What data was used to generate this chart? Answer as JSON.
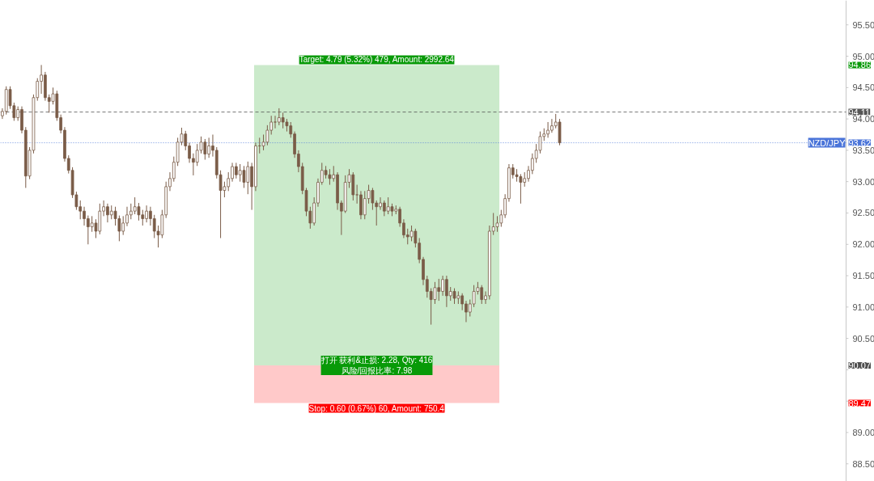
{
  "chart_data": {
    "type": "candlestick",
    "categories": [
      null,
      null,
      null,
      null,
      null,
      null,
      null,
      null,
      null,
      null,
      null,
      null,
      null,
      null,
      null,
      null,
      null,
      null,
      null,
      null,
      null,
      null,
      null,
      null,
      null,
      null,
      null,
      null,
      null,
      null,
      null,
      null,
      null,
      null,
      null,
      null,
      null,
      null,
      null,
      null,
      null,
      null,
      null,
      null,
      null,
      null,
      null,
      null,
      null,
      null,
      null,
      null,
      null,
      null,
      null,
      null,
      null,
      null,
      null,
      null,
      null,
      null,
      null,
      null,
      null,
      null,
      null,
      null,
      null,
      null,
      null,
      null,
      null,
      null,
      null,
      null,
      null,
      null,
      null,
      null,
      null,
      null,
      null,
      null,
      null,
      null,
      null,
      null,
      null,
      null,
      null,
      null,
      null,
      null,
      null,
      null,
      null,
      null,
      null,
      null,
      null,
      null,
      null,
      null,
      null,
      null,
      null,
      null,
      null,
      null,
      null,
      null,
      null,
      null,
      null,
      null,
      null,
      null,
      null,
      null,
      null,
      null,
      null,
      null,
      null,
      null,
      null,
      null,
      null,
      null,
      null,
      null,
      null,
      null,
      null,
      null,
      null,
      null,
      null,
      null,
      null,
      null,
      null,
      null,
      null,
      null,
      null,
      null,
      null,
      null,
      null,
      null,
      null,
      null,
      null,
      null,
      null,
      null,
      null,
      null,
      null,
      null,
      null,
      null,
      null,
      null,
      null,
      null,
      null,
      null,
      null,
      null,
      null,
      null,
      null,
      null,
      null,
      null,
      null,
      null,
      null,
      null,
      null,
      null,
      null,
      null,
      null,
      null,
      null,
      null,
      null,
      null,
      null,
      null,
      null,
      null,
      null,
      null,
      null,
      null,
      null,
      null,
      null,
      null,
      null,
      null,
      null,
      null,
      null,
      null,
      null,
      null,
      null,
      null,
      null,
      null,
      null
    ],
    "color": "#7a5c48",
    "ohlc": [
      [
        94.05,
        94.17,
        94.0,
        94.12
      ],
      [
        94.12,
        94.52,
        94.07,
        94.47
      ],
      [
        94.47,
        94.52,
        94.16,
        94.21
      ],
      [
        94.21,
        94.26,
        93.97,
        94.02
      ],
      [
        94.02,
        94.2,
        93.97,
        94.15
      ],
      [
        94.15,
        94.2,
        93.77,
        93.82
      ],
      [
        93.82,
        93.87,
        92.9,
        93.09
      ],
      [
        93.09,
        93.55,
        93.04,
        93.5
      ],
      [
        93.5,
        94.39,
        93.45,
        94.34
      ],
      [
        94.34,
        94.65,
        94.29,
        94.6
      ],
      [
        94.6,
        94.86,
        94.4,
        94.7
      ],
      [
        94.7,
        94.75,
        94.29,
        94.34
      ],
      [
        94.34,
        94.39,
        94.1,
        94.28
      ],
      [
        94.28,
        94.5,
        94.23,
        94.4
      ],
      [
        94.4,
        94.45,
        93.97,
        94.02
      ],
      [
        94.02,
        94.07,
        93.77,
        93.82
      ],
      [
        93.82,
        93.87,
        93.32,
        93.37
      ],
      [
        93.37,
        93.42,
        93.13,
        93.18
      ],
      [
        93.18,
        93.23,
        92.74,
        92.79
      ],
      [
        92.79,
        92.84,
        92.55,
        92.6
      ],
      [
        92.6,
        92.7,
        92.4,
        92.53
      ],
      [
        92.53,
        92.6,
        92.3,
        92.41
      ],
      [
        92.41,
        92.46,
        92.0,
        92.28
      ],
      [
        92.28,
        92.45,
        92.2,
        92.34
      ],
      [
        92.34,
        92.4,
        92.1,
        92.21
      ],
      [
        92.21,
        92.65,
        92.16,
        92.53
      ],
      [
        92.53,
        92.7,
        92.45,
        92.6
      ],
      [
        92.6,
        92.65,
        92.35,
        92.47
      ],
      [
        92.47,
        92.62,
        92.4,
        92.53
      ],
      [
        92.53,
        92.6,
        92.3,
        92.41
      ],
      [
        92.41,
        92.46,
        92.05,
        92.21
      ],
      [
        92.21,
        92.45,
        92.15,
        92.34
      ],
      [
        92.34,
        92.6,
        92.29,
        92.47
      ],
      [
        92.47,
        92.65,
        92.4,
        92.53
      ],
      [
        92.53,
        92.75,
        92.48,
        92.6
      ],
      [
        92.6,
        92.66,
        92.38,
        92.47
      ],
      [
        92.47,
        92.55,
        92.3,
        92.41
      ],
      [
        92.41,
        92.62,
        92.35,
        92.53
      ],
      [
        92.53,
        92.6,
        92.3,
        92.41
      ],
      [
        92.41,
        92.47,
        92.1,
        92.21
      ],
      [
        92.21,
        92.3,
        91.95,
        92.15
      ],
      [
        92.15,
        92.55,
        92.1,
        92.47
      ],
      [
        92.47,
        93.0,
        92.42,
        92.92
      ],
      [
        92.92,
        93.15,
        92.85,
        93.05
      ],
      [
        93.05,
        93.4,
        93.0,
        93.31
      ],
      [
        93.31,
        93.7,
        93.25,
        93.63
      ],
      [
        93.63,
        93.86,
        93.58,
        93.76
      ],
      [
        93.76,
        93.81,
        93.5,
        93.57
      ],
      [
        93.57,
        93.62,
        93.3,
        93.37
      ],
      [
        93.37,
        93.45,
        93.1,
        93.31
      ],
      [
        93.31,
        93.6,
        93.25,
        93.5
      ],
      [
        93.5,
        93.72,
        93.45,
        93.63
      ],
      [
        93.63,
        93.68,
        93.35,
        93.44
      ],
      [
        93.44,
        93.7,
        93.38,
        93.57
      ],
      [
        93.57,
        93.75,
        93.4,
        93.5
      ],
      [
        93.5,
        93.55,
        93.05,
        93.11
      ],
      [
        93.11,
        93.18,
        92.1,
        92.86
      ],
      [
        92.86,
        93.0,
        92.75,
        92.92
      ],
      [
        92.92,
        93.15,
        92.85,
        93.05
      ],
      [
        93.05,
        93.3,
        93.0,
        93.24
      ],
      [
        93.24,
        93.3,
        93.05,
        93.11
      ],
      [
        93.11,
        93.28,
        93.0,
        93.18
      ],
      [
        93.18,
        93.25,
        92.9,
        92.99
      ],
      [
        92.99,
        93.32,
        92.8,
        93.24
      ],
      [
        93.24,
        93.3,
        92.55,
        92.92
      ],
      [
        92.92,
        93.62,
        92.85,
        93.57
      ],
      [
        93.57,
        93.7,
        93.45,
        93.57
      ],
      [
        93.57,
        93.75,
        93.5,
        93.63
      ],
      [
        93.63,
        93.9,
        93.58,
        93.82
      ],
      [
        93.82,
        94.05,
        93.75,
        93.95
      ],
      [
        93.95,
        94.05,
        93.85,
        93.95
      ],
      [
        93.95,
        94.17,
        93.9,
        94.02
      ],
      [
        94.02,
        94.1,
        93.85,
        93.95
      ],
      [
        93.95,
        94.0,
        93.8,
        93.89
      ],
      [
        93.89,
        93.95,
        93.7,
        93.76
      ],
      [
        93.76,
        93.8,
        93.38,
        93.44
      ],
      [
        93.44,
        93.5,
        93.15,
        93.24
      ],
      [
        93.24,
        93.3,
        92.8,
        92.86
      ],
      [
        92.86,
        92.9,
        92.45,
        92.53
      ],
      [
        92.53,
        92.6,
        92.25,
        92.34
      ],
      [
        92.34,
        92.75,
        92.3,
        92.66
      ],
      [
        92.66,
        93.05,
        92.6,
        92.99
      ],
      [
        92.99,
        93.3,
        92.95,
        93.18
      ],
      [
        93.18,
        93.25,
        93.05,
        93.11
      ],
      [
        93.11,
        93.2,
        92.95,
        93.05
      ],
      [
        93.05,
        93.25,
        93.0,
        93.11
      ],
      [
        93.11,
        93.15,
        92.55,
        92.66
      ],
      [
        92.66,
        92.7,
        92.15,
        92.53
      ],
      [
        92.53,
        93.1,
        92.5,
        92.99
      ],
      [
        92.99,
        93.2,
        92.9,
        93.11
      ],
      [
        93.11,
        93.15,
        92.7,
        92.79
      ],
      [
        92.79,
        92.95,
        92.65,
        92.79
      ],
      [
        92.79,
        92.85,
        92.4,
        92.47
      ],
      [
        92.47,
        92.85,
        92.4,
        92.73
      ],
      [
        92.73,
        92.95,
        92.65,
        92.86
      ],
      [
        92.86,
        92.9,
        92.55,
        92.66
      ],
      [
        92.66,
        92.7,
        92.3,
        92.6
      ],
      [
        92.6,
        92.75,
        92.55,
        92.66
      ],
      [
        92.66,
        92.7,
        92.45,
        92.53
      ],
      [
        92.53,
        92.75,
        92.48,
        92.6
      ],
      [
        92.6,
        92.65,
        92.45,
        92.53
      ],
      [
        92.53,
        92.62,
        92.48,
        92.56
      ],
      [
        92.56,
        92.6,
        92.28,
        92.34
      ],
      [
        92.34,
        92.4,
        92.1,
        92.15
      ],
      [
        92.15,
        92.25,
        92.0,
        92.12
      ],
      [
        92.12,
        92.3,
        92.05,
        92.21
      ],
      [
        92.21,
        92.25,
        91.95,
        92.02
      ],
      [
        92.02,
        92.1,
        91.7,
        91.76
      ],
      [
        91.76,
        91.8,
        91.35,
        91.44
      ],
      [
        91.44,
        91.5,
        91.15,
        91.25
      ],
      [
        91.25,
        91.3,
        90.72,
        91.12
      ],
      [
        91.12,
        91.4,
        91.05,
        91.31
      ],
      [
        91.31,
        91.45,
        91.1,
        91.25
      ],
      [
        91.25,
        91.5,
        91.18,
        91.44
      ],
      [
        91.44,
        91.5,
        91.0,
        91.18
      ],
      [
        91.18,
        91.32,
        91.1,
        91.25
      ],
      [
        91.25,
        91.3,
        91.05,
        91.14
      ],
      [
        91.14,
        91.25,
        91.05,
        91.18
      ],
      [
        91.18,
        91.22,
        90.95,
        91.05
      ],
      [
        91.05,
        91.1,
        90.76,
        90.92
      ],
      [
        90.92,
        91.12,
        90.85,
        91.05
      ],
      [
        91.05,
        91.35,
        91.0,
        91.25
      ],
      [
        91.25,
        91.4,
        91.2,
        91.31
      ],
      [
        91.31,
        91.35,
        91.05,
        91.12
      ],
      [
        91.12,
        91.25,
        91.05,
        91.18
      ],
      [
        91.18,
        92.3,
        91.12,
        92.21
      ],
      [
        92.21,
        92.5,
        92.15,
        92.28
      ],
      [
        92.28,
        92.45,
        92.2,
        92.34
      ],
      [
        92.34,
        92.55,
        92.28,
        92.47
      ],
      [
        92.47,
        92.8,
        92.42,
        92.73
      ],
      [
        92.73,
        93.28,
        92.68,
        93.22
      ],
      [
        93.22,
        93.28,
        93.05,
        93.11
      ],
      [
        93.11,
        93.2,
        93.0,
        93.08
      ],
      [
        93.08,
        93.12,
        92.65,
        92.99
      ],
      [
        92.99,
        93.15,
        92.92,
        93.05
      ],
      [
        93.05,
        93.25,
        93.0,
        93.18
      ],
      [
        93.18,
        93.45,
        93.12,
        93.37
      ],
      [
        93.37,
        93.6,
        93.3,
        93.5
      ],
      [
        93.5,
        93.8,
        93.45,
        93.72
      ],
      [
        93.72,
        93.85,
        93.65,
        93.76
      ],
      [
        93.76,
        93.95,
        93.7,
        93.82
      ],
      [
        93.82,
        94.0,
        93.78,
        93.89
      ],
      [
        93.89,
        94.08,
        93.85,
        93.95
      ],
      [
        93.95,
        94.0,
        93.58,
        93.62
      ],
      null,
      null,
      null,
      null,
      null,
      null,
      null,
      null,
      null,
      null,
      null,
      null,
      null,
      null,
      null,
      null,
      null,
      null,
      null,
      null,
      null,
      null,
      null,
      null,
      null,
      null,
      null,
      null,
      null,
      null,
      null,
      null,
      null,
      null,
      null,
      null,
      null,
      null,
      null,
      null,
      null,
      null,
      null,
      null,
      null,
      null,
      null,
      null,
      null,
      null,
      null,
      null,
      null,
      null,
      null,
      null,
      null,
      null,
      null,
      null,
      null,
      null,
      null,
      null,
      null,
      null,
      null,
      null,
      null,
      null,
      null,
      null,
      null
    ],
    "ylim": [
      88.22,
      95.89
    ],
    "yticks": [
      {
        "value": 88.5,
        "label": "88.50"
      },
      {
        "value": 89,
        "label": "89.00"
      },
      {
        "value": 89.5,
        "label": null
      },
      {
        "value": 90,
        "label": null
      },
      {
        "value": 90.5,
        "label": "90.50"
      },
      {
        "value": 91,
        "label": "91.00"
      },
      {
        "value": 91.5,
        "label": "91.50"
      },
      {
        "value": 92,
        "label": "92.00"
      },
      {
        "value": 92.5,
        "label": "92.50"
      },
      {
        "value": 93,
        "label": "93.00"
      },
      {
        "value": 93.5,
        "label": "93.50"
      },
      {
        "value": 94,
        "label": "94.00"
      },
      {
        "value": 94.5,
        "label": "94.50"
      },
      {
        "value": 95,
        "label": "95.00"
      },
      {
        "value": 95.5,
        "label": "95.50"
      }
    ],
    "tick_labels": "y",
    "grid": false,
    "ref_lines": [
      {
        "axis": "y",
        "value": 94.11,
        "color": "#555555",
        "line_style": "dashed"
      },
      {
        "axis": "y",
        "value": 93.62,
        "label": "NZD/JPY",
        "color": "#4a74d9",
        "line_style": "dotted"
      }
    ],
    "bands": [
      {
        "axis": "y",
        "from": 90.07,
        "to": 94.86,
        "label": "Target: 4.79 (5.32%) 479, Amount: 2992.64",
        "color": "#089a08"
      },
      {
        "axis": "y",
        "from": 89.47,
        "to": 90.07,
        "label": "Stop: 0.60 (0.67%) 60, Amount: 750.4",
        "color": "#ff0000"
      }
    ],
    "annotations": [
      "打开 获利&止损: 2.28, Qty: 416\n风险/回报比率: 7.98",
      "94.86",
      "94.11",
      "93.62",
      "90.07",
      "89.47"
    ]
  }
}
